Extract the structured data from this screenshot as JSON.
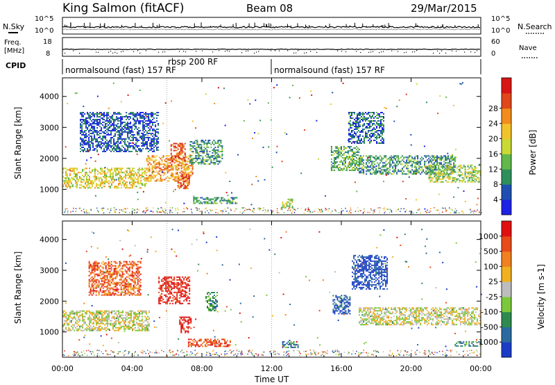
{
  "header": {
    "station": "King Salmon (fitACF)",
    "beam": "Beam 08",
    "date": "29/Mar/2015"
  },
  "status_panels": {
    "nsky": {
      "label": "N.Sky",
      "ticks": [
        "10^5",
        "10^0"
      ]
    },
    "nsearch": {
      "label": "N.Search",
      "ticks": [
        "10^5",
        "10^0"
      ]
    },
    "freq": {
      "label_line1": "Freq.",
      "label_line2": "[MHz]",
      "ticks": [
        "18",
        "8"
      ]
    },
    "nave": {
      "label": "Nave",
      "ticks": [
        "60",
        "0"
      ]
    },
    "cpid": {
      "label": "CPID",
      "segments": [
        {
          "text": "normalsound (fast) 157 RF",
          "start_hour": 0,
          "end_hour": 12
        },
        {
          "text": "rbsp 200 RF",
          "start_hour": 6,
          "end_hour": 12
        },
        {
          "text": "normalsound (fast) 157 RF",
          "start_hour": 12,
          "end_hour": 24
        }
      ]
    }
  },
  "chart_data": [
    {
      "type": "heatmap",
      "panel": "power",
      "ylabel": "Slant Range [km]",
      "y_ticks": [
        "1000",
        "2000",
        "3000",
        "4000"
      ],
      "ylim": [
        180,
        4600
      ],
      "xlim": [
        0,
        24
      ],
      "colorbar": {
        "label": "Power [dB]",
        "ticks": [
          "4",
          "8",
          "12",
          "16",
          "20",
          "24",
          "28"
        ],
        "colors": [
          "#1c22e6",
          "#1f4fb0",
          "#2f8f5c",
          "#62b84a",
          "#c8d934",
          "#f2c22c",
          "#f28c1c",
          "#e0471a",
          "#d81414"
        ]
      },
      "bands": [
        {
          "x0": 0.0,
          "x1": 4.8,
          "y0": 1050,
          "y1": 1700,
          "level": 0.55
        },
        {
          "x0": 4.8,
          "x1": 7.5,
          "y0": 1250,
          "y1": 2100,
          "level": 0.7
        },
        {
          "x0": 6.2,
          "x1": 7.0,
          "y0": 1900,
          "y1": 2500,
          "level": 0.85
        },
        {
          "x0": 6.6,
          "x1": 7.3,
          "y0": 1050,
          "y1": 1500,
          "level": 0.8
        },
        {
          "x0": 1.0,
          "x1": 5.5,
          "y0": 2200,
          "y1": 3500,
          "level": 0.15
        },
        {
          "x0": 7.3,
          "x1": 9.2,
          "y0": 1800,
          "y1": 2600,
          "level": 0.3
        },
        {
          "x0": 7.5,
          "x1": 10.0,
          "y0": 550,
          "y1": 750,
          "level": 0.3
        },
        {
          "x0": 15.4,
          "x1": 17.0,
          "y0": 1600,
          "y1": 2400,
          "level": 0.35
        },
        {
          "x0": 17.0,
          "x1": 22.5,
          "y0": 1500,
          "y1": 2100,
          "level": 0.3
        },
        {
          "x0": 21.0,
          "x1": 24.0,
          "y0": 1250,
          "y1": 1800,
          "level": 0.45
        },
        {
          "x0": 16.4,
          "x1": 18.4,
          "y0": 2500,
          "y1": 3500,
          "level": 0.2
        },
        {
          "x0": 12.6,
          "x1": 13.2,
          "y0": 400,
          "y1": 700,
          "level": 0.5
        }
      ]
    },
    {
      "type": "heatmap",
      "panel": "velocity",
      "ylabel": "Slant Range [km]",
      "xlabel": "Time UT",
      "y_ticks": [
        "1000",
        "2000",
        "3000",
        "4000"
      ],
      "x_ticks": [
        "00:00",
        "04:00",
        "08:00",
        "12:00",
        "16:00",
        "20:00",
        "00:00"
      ],
      "ylim": [
        180,
        4600
      ],
      "xlim": [
        0,
        24
      ],
      "colorbar": {
        "label": "Velocity [m s-1]",
        "ticks": [
          "1000",
          "500",
          "100",
          "25",
          "-25",
          "-100",
          "-500",
          "-1000"
        ],
        "colors": [
          "#1c3cc8",
          "#2a6a9e",
          "#2e8a4e",
          "#7cc83c",
          "#bdbdbd",
          "#f0b020",
          "#f08020",
          "#e84a1a",
          "#e01010"
        ]
      },
      "bands": [
        {
          "x0": 0.0,
          "x1": 5.0,
          "y0": 1050,
          "y1": 1700,
          "level": 0.5
        },
        {
          "x0": 1.5,
          "x1": 4.5,
          "y0": 2200,
          "y1": 3300,
          "level": 0.8
        },
        {
          "x0": 5.5,
          "x1": 7.3,
          "y0": 1900,
          "y1": 2800,
          "level": 0.95
        },
        {
          "x0": 6.7,
          "x1": 7.4,
          "y0": 1000,
          "y1": 1500,
          "level": 1.0
        },
        {
          "x0": 7.2,
          "x1": 9.6,
          "y0": 550,
          "y1": 780,
          "level": 0.85
        },
        {
          "x0": 8.2,
          "x1": 8.9,
          "y0": 1700,
          "y1": 2300,
          "level": 0.3
        },
        {
          "x0": 15.5,
          "x1": 16.5,
          "y0": 1600,
          "y1": 2200,
          "level": 0.1
        },
        {
          "x0": 16.6,
          "x1": 18.6,
          "y0": 2400,
          "y1": 3500,
          "level": 0.05
        },
        {
          "x0": 17.0,
          "x1": 24.0,
          "y0": 1250,
          "y1": 1800,
          "level": 0.5
        },
        {
          "x0": 12.6,
          "x1": 13.5,
          "y0": 500,
          "y1": 700,
          "level": 0.25
        },
        {
          "x0": 22.5,
          "x1": 24.0,
          "y0": 550,
          "y1": 700,
          "level": 0.25
        }
      ]
    }
  ]
}
